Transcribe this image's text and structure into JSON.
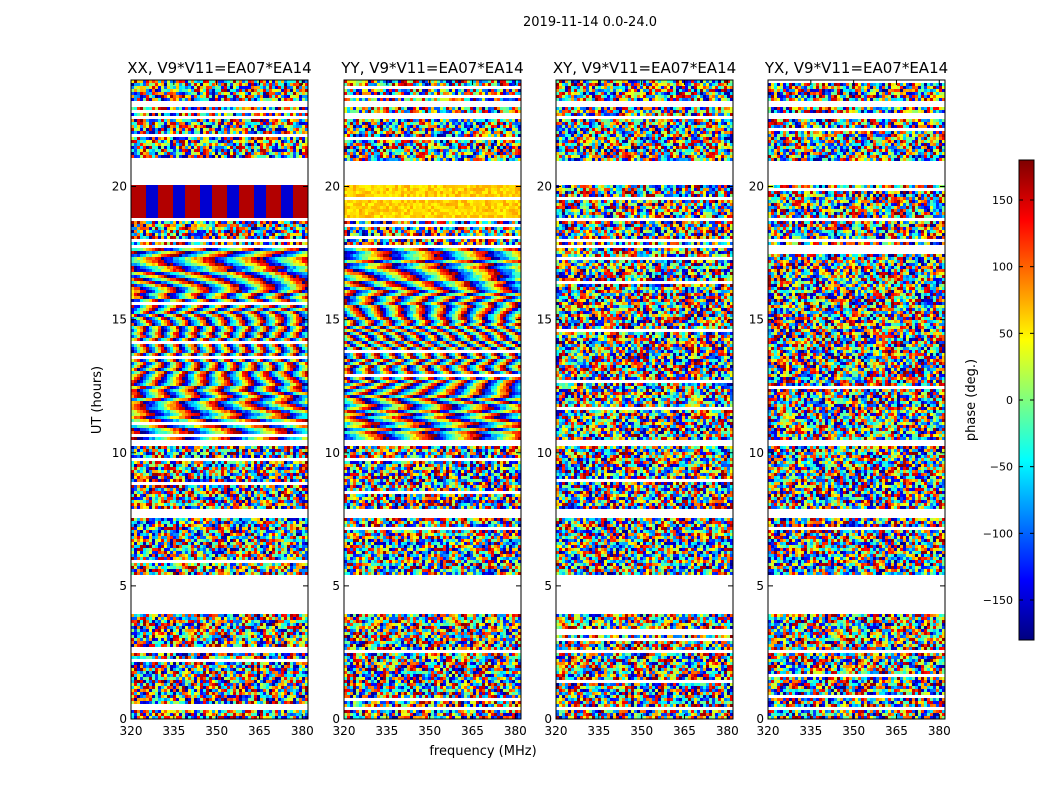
{
  "figure": {
    "suptitle": "2019-11-14 0.0-24.0"
  },
  "colors": {
    "jet": [
      "#00007f",
      "#0000ff",
      "#007fff",
      "#00ffff",
      "#7fff7f",
      "#ffff00",
      "#ff7f00",
      "#ff0000",
      "#7f0000"
    ],
    "frame": "#000000",
    "gap": "#ffffff"
  },
  "chart_data": [
    {
      "type": "heatmap",
      "title": "XX, V9*V11=EA07*EA14",
      "xlabel": "",
      "ylabel": "UT (hours)",
      "xlim": [
        320,
        382
      ],
      "ylim": [
        0,
        24
      ],
      "xticks": [
        320,
        335,
        350,
        365,
        380
      ],
      "yticks": [
        0,
        5,
        10,
        15,
        20
      ],
      "style": "strong-phase-slope"
    },
    {
      "type": "heatmap",
      "title": "YY, V9*V11=EA07*EA14",
      "xlabel": "frequency (MHz)",
      "ylabel": "",
      "xlim": [
        320,
        382
      ],
      "ylim": [
        0,
        24
      ],
      "xticks": [
        320,
        335,
        350,
        365,
        380
      ],
      "yticks": [
        0,
        5,
        10,
        15,
        20
      ],
      "style": "strong-phase-slope-orange"
    },
    {
      "type": "heatmap",
      "title": "XY, V9*V11=EA07*EA14",
      "xlabel": "",
      "ylabel": "",
      "xlim": [
        320,
        382
      ],
      "ylim": [
        0,
        24
      ],
      "xticks": [
        320,
        335,
        350,
        365,
        380
      ],
      "yticks": [
        0,
        5,
        10,
        15,
        20
      ],
      "style": "noisy"
    },
    {
      "type": "heatmap",
      "title": "YX, V9*V11=EA07*EA14",
      "xlabel": "",
      "ylabel": "",
      "xlim": [
        320,
        382
      ],
      "ylim": [
        0,
        24
      ],
      "xticks": [
        320,
        335,
        350,
        365,
        380
      ],
      "yticks": [
        0,
        5,
        10,
        15,
        20
      ],
      "style": "noisy"
    }
  ],
  "colorbar": {
    "label": "phase (deg.)",
    "range": [
      -180,
      180
    ],
    "ticks": [
      150,
      100,
      50,
      0,
      -50,
      -100,
      -150
    ],
    "tick_labels": [
      "150",
      "100",
      "50",
      "0",
      "−50",
      "−100",
      "−150"
    ],
    "colormap": "jet"
  },
  "time_gaps_hours": [
    [
      5.5,
      4.05
    ],
    [
      20.3,
      21.0
    ],
    [
      7.6,
      7.9
    ],
    [
      10.5,
      10.35
    ],
    [
      17.7,
      17.9
    ],
    [
      18.75,
      18.9
    ],
    [
      0.55,
      0.45
    ],
    [
      2.6,
      2.5
    ],
    [
      15.2,
      15.1
    ],
    [
      22.75,
      22.6
    ],
    [
      23.25,
      23.05
    ],
    [
      20.3,
      20.1
    ]
  ]
}
